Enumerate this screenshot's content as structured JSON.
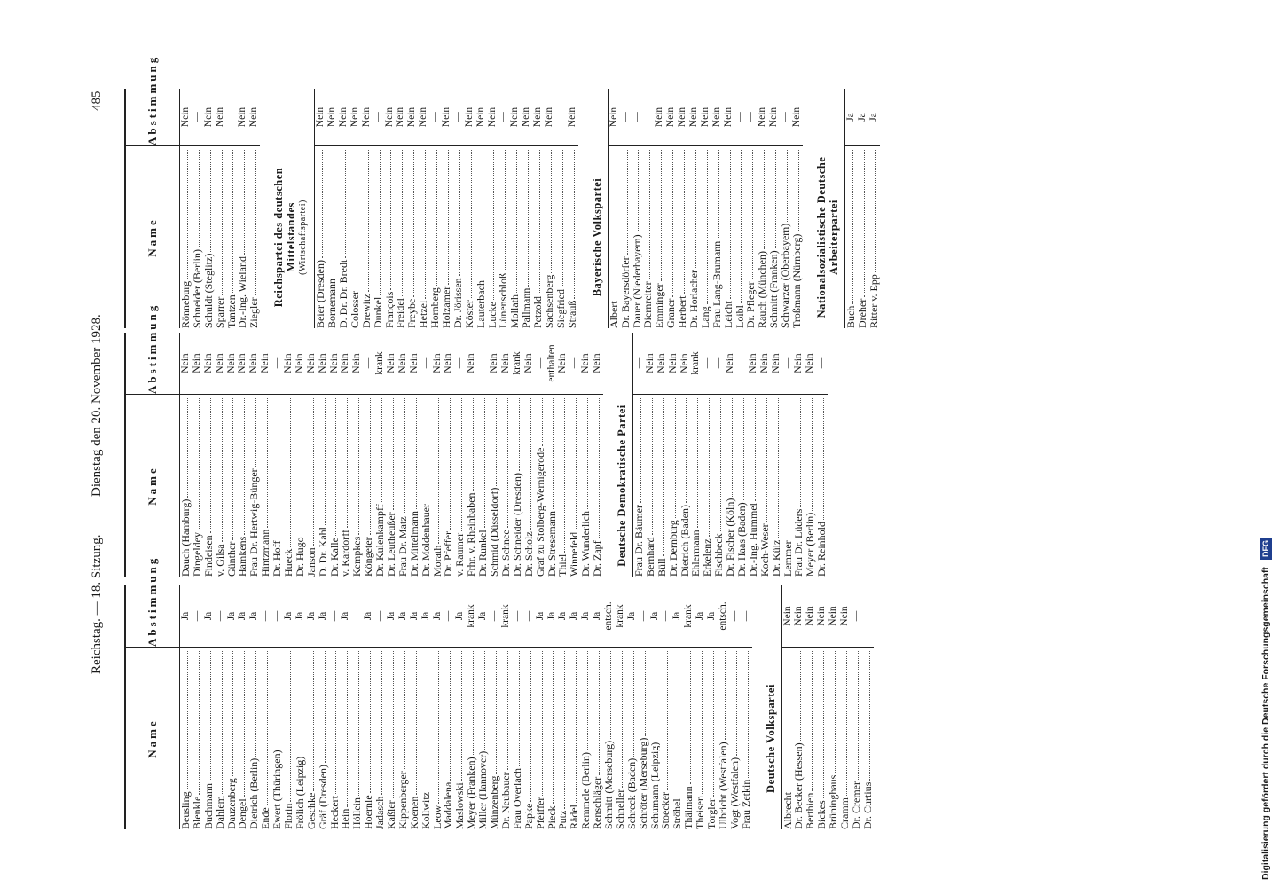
{
  "header": {
    "left": "Reichstag. — 18. Sitzung.",
    "center": "Dienstag den 20. November 1928.",
    "page": "485"
  },
  "table_header": {
    "name": "Name",
    "vote": "Abstimmung"
  },
  "columns": [
    {
      "sections": [
        {
          "rows": [
            [
              "Beusling",
              "Ja"
            ],
            [
              "Blenkle",
              "—"
            ],
            [
              "Buchmann",
              "Ja"
            ],
            [
              "Dahlem",
              "—"
            ],
            [
              "Dauzenberg",
              "Ja"
            ],
            [
              "Dengel",
              "Ja"
            ],
            [
              "Dietrich (Berlin)",
              "Ja"
            ],
            [
              "Ende",
              "—"
            ],
            [
              "Ewert (Thüringen)",
              "—"
            ],
            [
              "Florin",
              "Ja"
            ],
            [
              "Frölich (Leipzig)",
              "Ja"
            ],
            [
              "Geschke",
              "Ja"
            ],
            [
              "Gräf (Dresden)",
              "Ja"
            ],
            [
              "Heckert",
              "—"
            ],
            [
              "Hein",
              "Ja"
            ],
            [
              "Höllein",
              "—"
            ],
            [
              "Hoernle",
              "Ja"
            ],
            [
              "Jadasch",
              "—"
            ],
            [
              "Kaßler",
              "Ja"
            ],
            [
              "Kippenberger",
              "Ja"
            ],
            [
              "Koenen",
              "Ja"
            ],
            [
              "Kollwitz",
              "Ja"
            ],
            [
              "Leow",
              "Ja"
            ],
            [
              "Maddalena",
              "—"
            ],
            [
              "Maslowski",
              "Ja"
            ],
            [
              "Meyer (Franken)",
              "krank"
            ],
            [
              "Miller (Hannover)",
              "Ja"
            ],
            [
              "Münzenberg",
              "—"
            ],
            [
              "Dr. Neubauer",
              "krank"
            ],
            [
              "Frau Overlach",
              "—"
            ],
            [
              "Papke",
              "—"
            ],
            [
              "Pfeiffer",
              "Ja"
            ],
            [
              "Pieck",
              "Ja"
            ],
            [
              "Putz",
              "Ja"
            ],
            [
              "Rädel",
              "Ja"
            ],
            [
              "Remmele (Berlin)",
              "Ja"
            ],
            [
              "Renschläger",
              "Ja"
            ],
            [
              "Schmitt (Merseburg)",
              "entsch."
            ],
            [
              "Schneller",
              "krank"
            ],
            [
              "Schreck (Baden)",
              "Ja"
            ],
            [
              "Schröter (Merseburg)",
              "—"
            ],
            [
              "Schumann (Leipzig)",
              "Ja"
            ],
            [
              "Stoecker",
              "—"
            ],
            [
              "Ströhel",
              "Ja"
            ],
            [
              "Thälmann",
              "krank"
            ],
            [
              "Theisen",
              "Ja"
            ],
            [
              "Torgler",
              "Ja"
            ],
            [
              "Ulbricht (Westfalen)",
              "entsch."
            ],
            [
              "Vogt (Westfalen)",
              "—"
            ],
            [
              "Frau Zetkin",
              "—"
            ]
          ]
        },
        {
          "title": "Deutsche Volkspartei",
          "rows": [
            [
              "Albrecht",
              "Nein"
            ],
            [
              "Dr. Becker (Hessen)",
              "Nein"
            ],
            [
              "Berthien",
              "Nein"
            ],
            [
              "Bickes",
              "Nein"
            ],
            [
              "Brüninghaus",
              "Nein"
            ],
            [
              "Cramm",
              "Nein"
            ],
            [
              "Dr. Cremer",
              "—"
            ],
            [
              "Dr. Curtius",
              "—"
            ]
          ]
        }
      ]
    },
    {
      "sections": [
        {
          "rows": [
            [
              "Dauch (Hamburg)",
              "Nein"
            ],
            [
              "Dingeldey",
              "Nein"
            ],
            [
              "Findeisen",
              "Nein"
            ],
            [
              "v. Gilsa",
              "Nein"
            ],
            [
              "Günther",
              "Nein"
            ],
            [
              "Hamkens",
              "Nein"
            ],
            [
              "Frau Dr. Hertwig-Bünger",
              "Nein"
            ],
            [
              "Hintzmann",
              "Nein"
            ],
            [
              "Dr. Hoff",
              "—"
            ],
            [
              "Hueck",
              "Nein"
            ],
            [
              "Dr. Hugo",
              "Nein"
            ],
            [
              "Janson",
              "Nein"
            ],
            [
              "D. Dr. Kahl",
              "Nein"
            ],
            [
              "Dr. Kalle",
              "Nein"
            ],
            [
              "v. Kardorff",
              "Nein"
            ],
            [
              "Kempkes",
              "Nein"
            ],
            [
              "Köngeter",
              "—"
            ],
            [
              "Dr. Kulenkampff",
              "krank"
            ],
            [
              "Dr. Leutheußer",
              "Nein"
            ],
            [
              "Frau Dr. Matz",
              "Nein"
            ],
            [
              "Dr. Mittelmann",
              "Nein"
            ],
            [
              "Dr. Moldenhauer",
              "—"
            ],
            [
              "Morath",
              "Nein"
            ],
            [
              "Dr. Pfeffer",
              "Nein"
            ],
            [
              "v. Raumer",
              "—"
            ],
            [
              "Frhr. v. Rheinbaben",
              "Nein"
            ],
            [
              "Dr. Runkel",
              "—"
            ],
            [
              "Schmid (Düsseldorf)",
              "Nein"
            ],
            [
              "Dr. Schnee",
              "Nein"
            ],
            [
              "Dr. Schneider (Dresden)",
              "krank"
            ],
            [
              "Dr. Scholz",
              "Nein"
            ],
            [
              "Graf zu Stolberg-Wernigerode",
              "—"
            ],
            [
              "Dr. Stresemann",
              "enthalten"
            ],
            [
              "Thiel",
              "Nein"
            ],
            [
              "Winnefeld",
              "—"
            ],
            [
              "Dr. Wunderlich",
              "Nein"
            ],
            [
              "Dr. Zapf",
              "Nein"
            ]
          ]
        },
        {
          "title": "Deutsche Demokratische Partei",
          "rows": [
            [
              "Frau Dr. Bäumer",
              "—"
            ],
            [
              "Bernhard",
              "Nein"
            ],
            [
              "Büll",
              "Nein"
            ],
            [
              "Dr. Dernburg",
              "Nein"
            ],
            [
              "Dietrich (Baden)",
              "Nein"
            ],
            [
              "Ehlermann",
              "krank"
            ],
            [
              "Erkelenz",
              "—"
            ],
            [
              "Fischbeck",
              "—"
            ],
            [
              "Dr. Fischer (Köln)",
              "Nein"
            ],
            [
              "Dr. Haas (Baden)",
              "—"
            ],
            [
              "Dr.-Ing. Hummel",
              "Nein"
            ],
            [
              "Koch-Weser",
              "Nein"
            ],
            [
              "Dr. Külz",
              "Nein"
            ],
            [
              "Lemmer",
              "—"
            ],
            [
              "Frau Dr. Lüders",
              "Nein"
            ],
            [
              "Meyer (Berlin)",
              "Nein"
            ],
            [
              "Dr. Reinhold",
              "—"
            ]
          ]
        }
      ]
    },
    {
      "sections": [
        {
          "rows": [
            [
              "Rönneburg",
              "Nein"
            ],
            [
              "Schneider (Berlin)",
              "—"
            ],
            [
              "Schuldt (Steglitz)",
              "Nein"
            ],
            [
              "Sparrer",
              "Nein"
            ],
            [
              "Tantzen",
              "—"
            ],
            [
              "Dr.-Ing. Wieland",
              "Nein"
            ],
            [
              "Ziegler",
              "Nein"
            ]
          ]
        },
        {
          "title": "Reichspartei des deutschen Mittelstandes",
          "subtitle": "(Wirtschaftspartei)",
          "rows": [
            [
              "Beier (Dresden)",
              "Nein"
            ],
            [
              "Bornemann",
              "Nein"
            ],
            [
              "D. Dr. Dr. Bredt",
              "Nein"
            ],
            [
              "Colosser",
              "Nein"
            ],
            [
              "Drewitz",
              "Nein"
            ],
            [
              "Dunkel",
              "—"
            ],
            [
              "François",
              "Nein"
            ],
            [
              "Freidel",
              "Nein"
            ],
            [
              "Freybe",
              "Nein"
            ],
            [
              "Hetzel",
              "Nein"
            ],
            [
              "Hornberg",
              "—"
            ],
            [
              "Holzamer",
              "Nein"
            ],
            [
              "Dr. Jörissen",
              "—"
            ],
            [
              "Köster",
              "Nein"
            ],
            [
              "Lauterbach",
              "Nein"
            ],
            [
              "Lucke",
              "Nein"
            ],
            [
              "Lünenschloß",
              "—"
            ],
            [
              "Mollath",
              "Nein"
            ],
            [
              "Pallmann",
              "Nein"
            ],
            [
              "Petzold",
              "Nein"
            ],
            [
              "Sachsenberg",
              "Nein"
            ],
            [
              "Siegfried",
              "—"
            ],
            [
              "Strauß",
              "Nein"
            ]
          ]
        },
        {
          "title": "Bayerische Volkspartei",
          "rows": [
            [
              "Albert",
              "Nein"
            ],
            [
              "Dr. Bayersdörfer",
              "—"
            ],
            [
              "Dauer (Niederbayern)",
              "—"
            ],
            [
              "Diernreiter",
              "—"
            ],
            [
              "Emminger",
              "Nein"
            ],
            [
              "Graner",
              "Nein"
            ],
            [
              "Herbert",
              "Nein"
            ],
            [
              "Dr. Horlacher",
              "Nein"
            ],
            [
              "Lang",
              "Nein"
            ],
            [
              "Frau Lang-Brumann",
              "Nein"
            ],
            [
              "Leicht",
              "Nein"
            ],
            [
              "Loibl",
              "—"
            ],
            [
              "Dr. Pfleger",
              "—"
            ],
            [
              "Rauch (München)",
              "Nein"
            ],
            [
              "Schmitt (Franken)",
              "Nein"
            ],
            [
              "Schwarzer (Oberbayern)",
              "—"
            ],
            [
              "Troßmann (Nürnberg)",
              "Nein"
            ]
          ]
        },
        {
          "title": "Nationalsozialistische Deutsche Arbeiterpartei",
          "rows": [
            [
              "Buch",
              "Ja"
            ],
            [
              "Dreher",
              "Ja"
            ],
            [
              "Ritter v. Epp",
              "Ja"
            ]
          ]
        }
      ]
    }
  ],
  "footer": {
    "credit": "Digitalisierung gefördert durch die Deutsche Forschungsgemeinschaft",
    "logo": "DFG"
  }
}
